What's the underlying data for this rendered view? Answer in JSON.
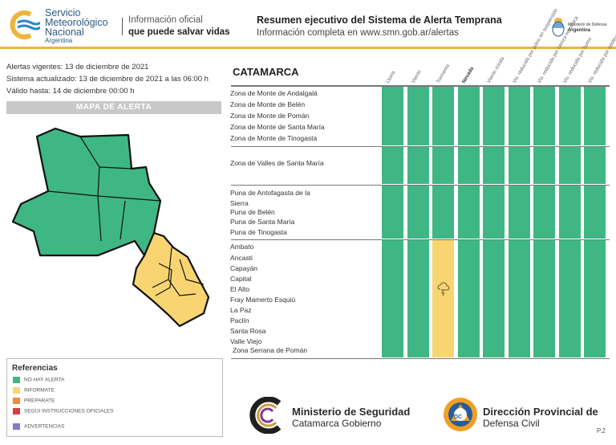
{
  "header": {
    "smn_line1": "Servicio",
    "smn_line2": "Meteorológico",
    "smn_line3": "Nacional",
    "smn_country": "Argentina",
    "slogan_line1": "Información oficial",
    "slogan_line2": "que puede salvar vidas",
    "title": "Resumen ejecutivo del Sistema de Alerta Temprana",
    "subtitle": "Información completa en www.smn.gob.ar/alertas",
    "ministry_line1": "Ministerio de Defensa",
    "ministry_line2": "Argentina"
  },
  "info": {
    "alertas": "Alertas vigentes: 13 de diciembre de 2021",
    "actualizado": "Sistema actualizado: 13 de diciembre de 2021 a las 06:00 h",
    "valido": "Válido hasta: 14 de diciembre 00:00 h"
  },
  "map": {
    "header": "MAPA DE ALERTA"
  },
  "table": {
    "province": "CATAMARCA",
    "columns": [
      "Lluvia",
      "Viento",
      "Tormenta",
      "Nevada",
      "Viento zonda",
      "Vis. reducida por polvo en suspensión",
      "Vis. reducida por ceniza volcánica",
      "Vis. reducida por humo",
      "Vis. reducida por neblina"
    ],
    "groups": [
      {
        "zones": [
          "Zona de Monte de Andalgalá",
          "Zona de Monte de Belén",
          "Zona de Monte de Pomán",
          "Zona de Monte de Santa María",
          "Zona de Monte de Tinogasta"
        ]
      },
      {
        "zones": [
          "Zona de Valles de Santa María"
        ]
      },
      {
        "zones": [
          "Puna de Antofagasta de la Sierra",
          "Puna de Belén",
          "Puna de Santa María",
          "Puna de Tinogasta"
        ]
      },
      {
        "zones": [
          "Ambato",
          "Ancasti",
          "Capayán",
          "Capital",
          "El Alto",
          "Fray Mamerto Esquiú",
          "La Paz",
          "Paclín",
          "Santa Rosa",
          "Valle Viejo",
          "Zona Serrana de Pomán"
        ]
      }
    ],
    "alert_cell": {
      "group": 4,
      "column": "Tormenta",
      "level": "INFORMATE",
      "icon": "storm-cloud-icon"
    }
  },
  "references": {
    "title": "Referencias",
    "items": [
      {
        "label": "NO HAY ALERTA",
        "color": "#3fb784"
      },
      {
        "label": "INFORMATE",
        "color": "#f9d572"
      },
      {
        "label": "PREPARATE",
        "color": "#f08c3c"
      },
      {
        "label": "SEGUI INSTRUCCIONES OFICIALES",
        "color": "#d93c3c"
      },
      {
        "label": "ADVERTENCIAS",
        "color": "#8a78c8"
      }
    ]
  },
  "footer": {
    "seg_line1": "Ministerio de Seguridad",
    "seg_line2": "Catamarca Gobierno",
    "dc_line1": "Dirección Provincial de",
    "dc_line2": "Defensa Civil",
    "dc_badge": "DC",
    "page": "P.2"
  },
  "colors": {
    "green": "#3fb784",
    "yellow": "#f9d572",
    "accent": "#f0b43c"
  }
}
